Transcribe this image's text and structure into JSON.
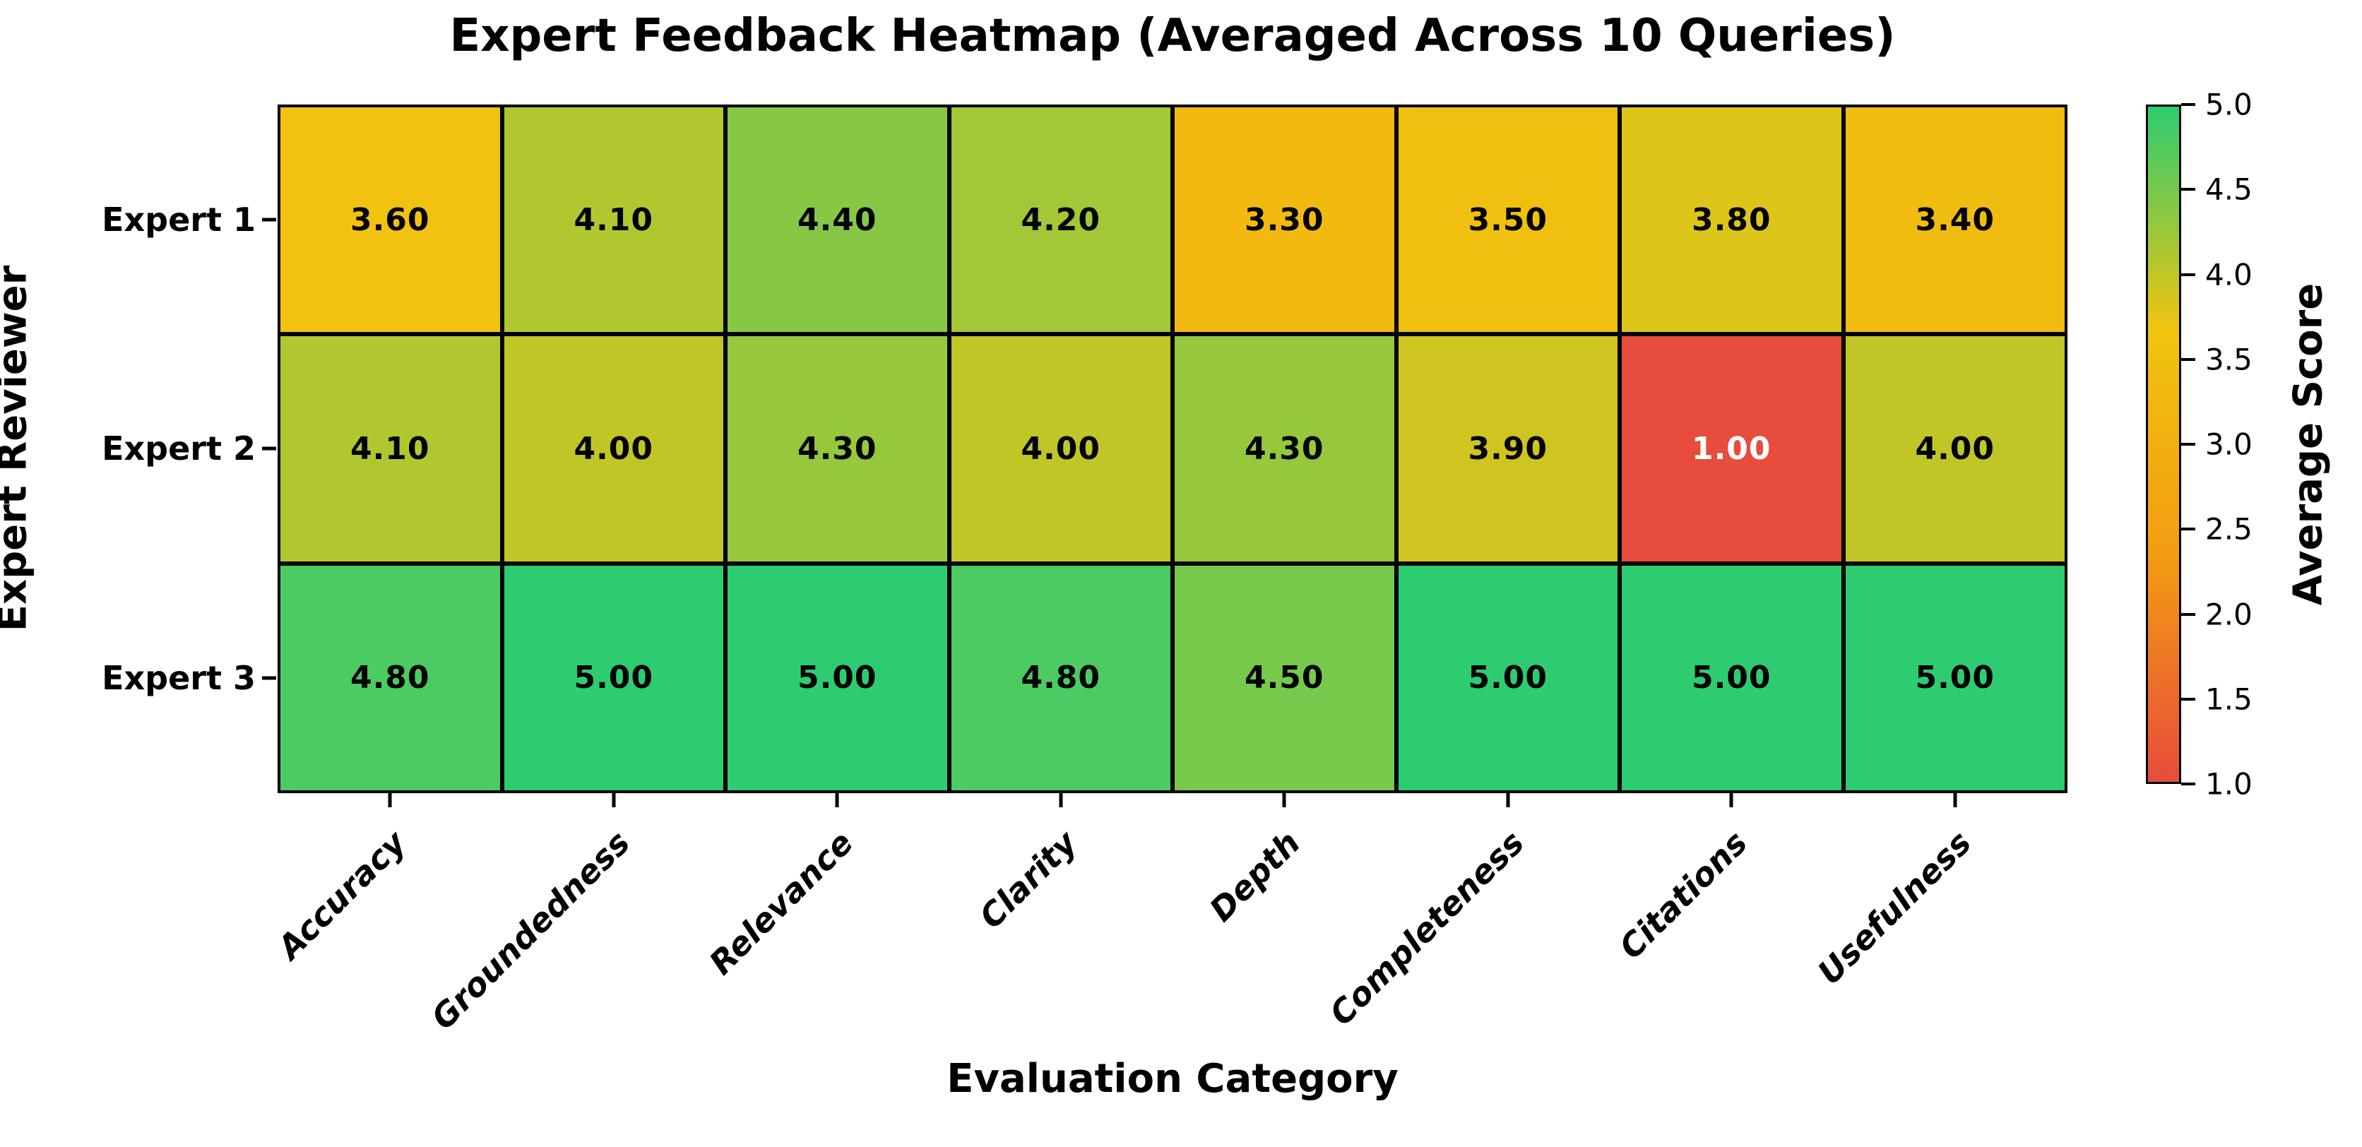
{
  "chart_data": {
    "type": "heatmap",
    "title": "Expert Feedback Heatmap (Averaged Across 10 Queries)",
    "xlabel": "Evaluation Category",
    "ylabel": "Expert Reviewer",
    "rows": [
      "Expert 1",
      "Expert 2",
      "Expert 3"
    ],
    "categories": [
      "Accuracy",
      "Groundedness",
      "Relevance",
      "Clarity",
      "Depth",
      "Completeness",
      "Citations",
      "Usefulness"
    ],
    "values": [
      [
        3.6,
        4.1,
        4.4,
        4.2,
        3.3,
        3.5,
        3.8,
        3.4
      ],
      [
        4.1,
        4.0,
        4.3,
        4.0,
        4.3,
        3.9,
        1.0,
        4.0
      ],
      [
        4.8,
        5.0,
        5.0,
        4.8,
        4.5,
        5.0,
        5.0,
        5.0
      ]
    ],
    "value_decimals": 2,
    "vmin": 1.0,
    "vmax": 5.0,
    "grid_on": false,
    "cell_border_color": "#000000",
    "colormap": {
      "stops": [
        {
          "value": 1.0,
          "color": "#e74c3c"
        },
        {
          "value": 2.33,
          "color": "#f39c12"
        },
        {
          "value": 3.67,
          "color": "#f1c40f"
        },
        {
          "value": 5.0,
          "color": "#2ecc71"
        }
      ]
    },
    "cell_text": {
      "default_color": "#000000",
      "low_value_color": "#ffffff",
      "white_text_below": 2.0
    },
    "colorbar": {
      "label": "Average Score",
      "position": "right",
      "ticks": [
        "5.0",
        "4.5",
        "4.0",
        "3.5",
        "3.0",
        "2.5",
        "2.0",
        "1.5",
        "1.0"
      ]
    }
  }
}
